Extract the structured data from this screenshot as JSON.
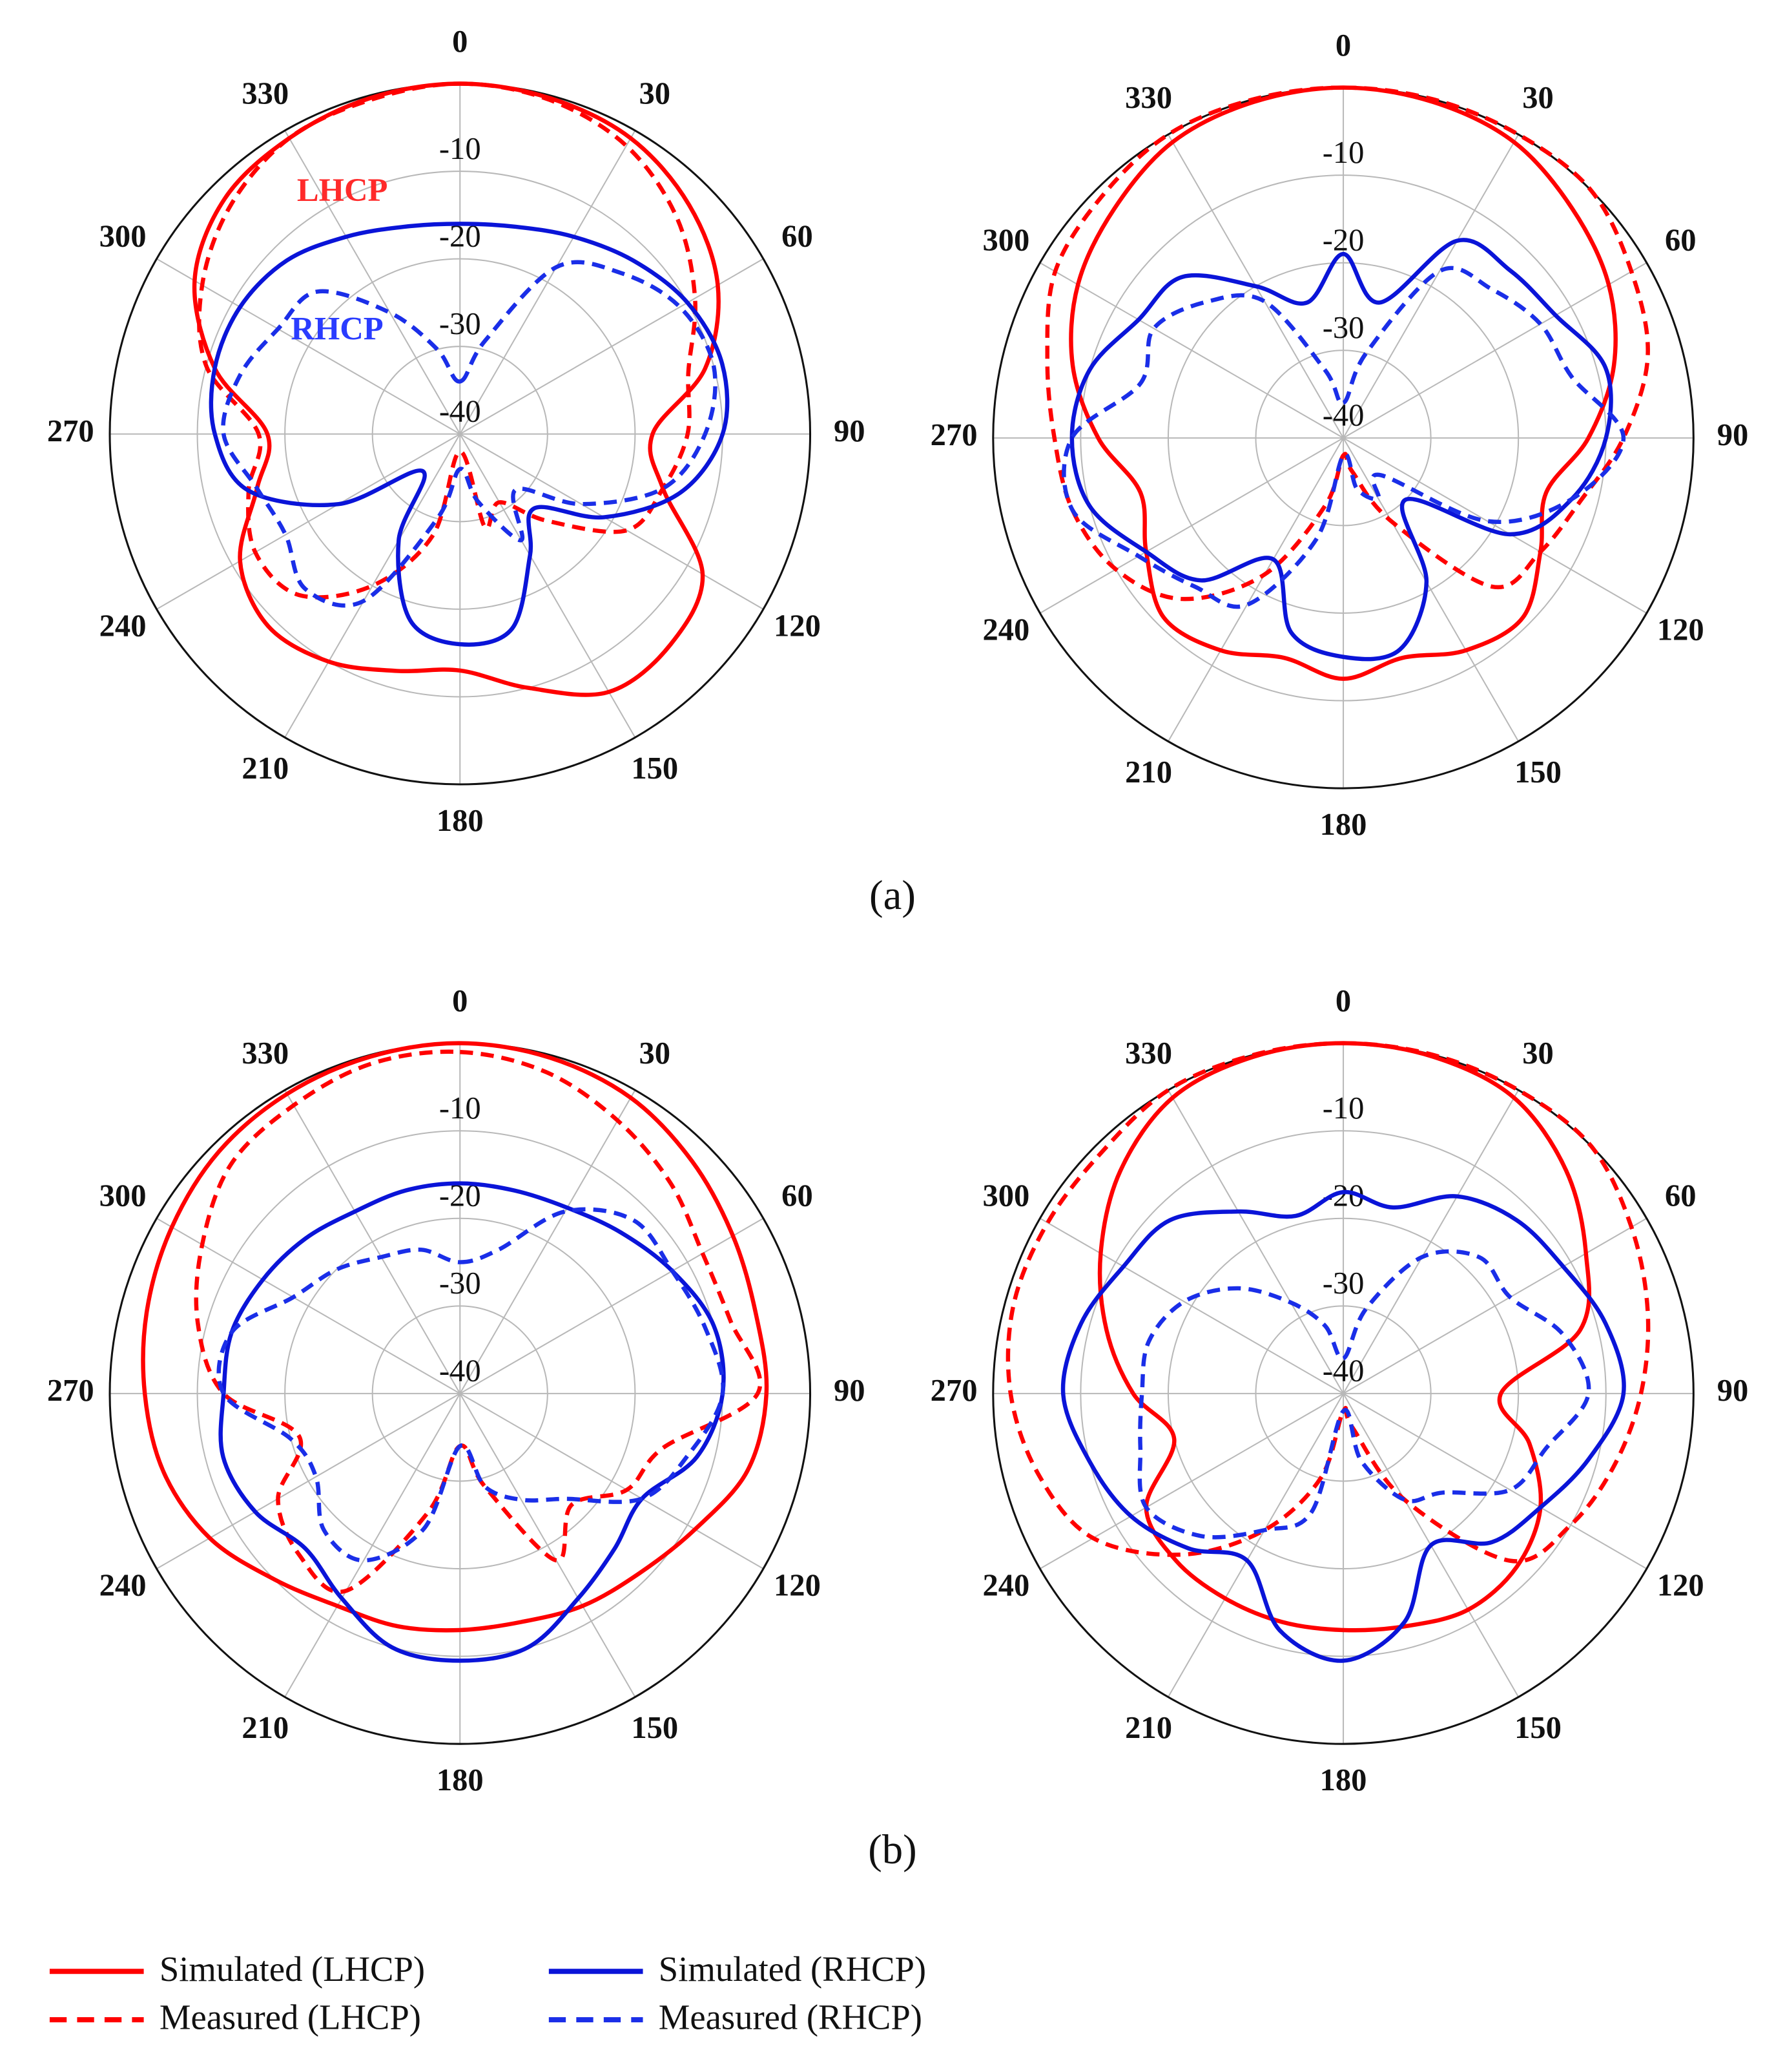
{
  "chart_data": [
    {
      "type": "polar",
      "x": [
        0,
        15,
        30,
        45,
        60,
        75,
        90,
        105,
        120,
        135,
        150,
        165,
        180,
        195,
        210,
        225,
        240,
        255,
        270,
        285,
        300,
        315,
        330,
        345
      ],
      "xticks": [
        0,
        30,
        60,
        90,
        120,
        150,
        180,
        210,
        240,
        270,
        300,
        330
      ],
      "ylim": [
        -40,
        0
      ],
      "yticks": [
        -40,
        -30,
        -20,
        -10
      ],
      "annotations": [
        {
          "text": "LHCP",
          "color": "#ff2a2a"
        },
        {
          "text": "RHCP",
          "color": "#2a3cff"
        }
      ],
      "series": [
        {
          "name": "Simulated (LHCP)",
          "color": "#ff0000",
          "dash": false,
          "values": [
            0,
            -0.3,
            -1,
            -3,
            -6,
            -11,
            -18,
            -16,
            -8,
            -6,
            -6,
            -10,
            -13,
            -12,
            -10,
            -9,
            -11,
            -16,
            -18,
            -11,
            -5,
            -2,
            -1,
            -0.3
          ]
        },
        {
          "name": "Measured (LHCP)",
          "color": "#ff0000",
          "dash": true,
          "values": [
            0,
            -0.5,
            -2,
            -5,
            -9,
            -13,
            -14,
            -16,
            -18,
            -26,
            -31,
            -29,
            -38,
            -28,
            -20,
            -14,
            -13,
            -15,
            -17,
            -10,
            -6,
            -3,
            -1,
            -0.5
          ]
        },
        {
          "name": "Simulated (RHCP)",
          "color": "#0a14d8",
          "dash": false,
          "values": [
            -16,
            -15.5,
            -14,
            -12,
            -10,
            -9,
            -10,
            -14,
            -21,
            -28,
            -24,
            -17,
            -16,
            -18,
            -26,
            -34,
            -24,
            -15,
            -12,
            -11,
            -11,
            -12,
            -14,
            -15.5
          ]
        },
        {
          "name": "Measured (RHCP)",
          "color": "#1a2ee8",
          "dash": true,
          "values": [
            -34,
            -29,
            -18,
            -14,
            -11,
            -10,
            -12,
            -16,
            -24,
            -31,
            -26,
            -32,
            -36,
            -30,
            -18,
            -15,
            -17,
            -16,
            -13,
            -14,
            -16,
            -17,
            -24,
            -30
          ]
        }
      ]
    },
    {
      "type": "polar",
      "x": [
        0,
        15,
        30,
        45,
        60,
        75,
        90,
        105,
        120,
        135,
        150,
        165,
        180,
        195,
        210,
        225,
        240,
        255,
        270,
        285,
        300,
        315,
        330,
        345
      ],
      "xticks": [
        0,
        30,
        60,
        90,
        120,
        150,
        180,
        210,
        240,
        270,
        300,
        330
      ],
      "ylim": [
        -40,
        0
      ],
      "yticks": [
        -40,
        -30,
        -20,
        -10
      ],
      "series": [
        {
          "color": "#ff0000",
          "dash": false,
          "values": [
            0,
            -0.3,
            -1,
            -3,
            -5,
            -8,
            -12,
            -16,
            -14,
            -11,
            -12,
            -14,
            -12.5,
            -14,
            -12,
            -11,
            -14,
            -16,
            -12,
            -8,
            -5,
            -3,
            -1,
            -0.3
          ]
        },
        {
          "color": "#ff0000",
          "dash": true,
          "values": [
            0,
            0,
            0,
            0,
            -2,
            -4,
            -8,
            -12,
            -14,
            -16,
            -29,
            -36,
            -38,
            -32,
            -22,
            -14,
            -10,
            -8,
            -7,
            -5,
            -2,
            -1,
            0,
            0
          ]
        },
        {
          "color": "#0a14d8",
          "dash": false,
          "values": [
            -19,
            -24,
            -14,
            -13,
            -12,
            -9,
            -10,
            -13,
            -18,
            -30,
            -21,
            -15,
            -15,
            -17,
            -24,
            -17,
            -14,
            -10,
            -9,
            -10,
            -13,
            -14,
            -20,
            -24
          ]
        },
        {
          "color": "#1a2ee8",
          "dash": true,
          "values": [
            -36,
            -30,
            -18,
            -16,
            -14,
            -13,
            -8,
            -13,
            -21,
            -34,
            -32,
            -34,
            -38,
            -28,
            -18,
            -16,
            -13,
            -8,
            -9,
            -16,
            -15,
            -18,
            -22,
            -32
          ]
        }
      ]
    },
    {
      "type": "polar",
      "x": [
        0,
        15,
        30,
        45,
        60,
        75,
        90,
        105,
        120,
        135,
        150,
        165,
        180,
        195,
        210,
        225,
        240,
        255,
        270,
        285,
        300,
        315,
        330,
        345
      ],
      "xticks": [
        0,
        30,
        60,
        90,
        120,
        150,
        180,
        210,
        240,
        270,
        300,
        330
      ],
      "ylim": [
        -40,
        0
      ],
      "yticks": [
        -40,
        -30,
        -20,
        -10
      ],
      "series": [
        {
          "color": "#ff0000",
          "dash": false,
          "values": [
            0,
            -0.3,
            -1,
            -2.5,
            -4,
            -5,
            -5,
            -6,
            -9,
            -11,
            -12,
            -13,
            -13,
            -12.5,
            -12,
            -10,
            -7,
            -5,
            -4,
            -3,
            -2,
            -1,
            -0.5,
            -0.2
          ]
        },
        {
          "color": "#ff0000",
          "dash": true,
          "values": [
            -1,
            -2,
            -4,
            -6,
            -8,
            -8,
            -6,
            -16,
            -18,
            -22,
            -18,
            -29,
            -34,
            -26,
            -14,
            -14,
            -16,
            -21,
            -13,
            -9,
            -6,
            -3,
            -2,
            -1
          ]
        },
        {
          "color": "#0a14d8",
          "dash": false,
          "values": [
            -16,
            -16,
            -15.5,
            -14,
            -12,
            -10,
            -10,
            -12,
            -16,
            -15,
            -13,
            -10,
            -9.5,
            -10,
            -13,
            -15,
            -13,
            -12,
            -13,
            -13,
            -14,
            -15,
            -16,
            -16
          ]
        },
        {
          "color": "#1a2ee8",
          "dash": true,
          "values": [
            -25,
            -23,
            -16,
            -12,
            -12,
            -11,
            -10,
            -13,
            -16,
            -23,
            -26,
            -29,
            -34,
            -24,
            -18,
            -18,
            -21,
            -20,
            -13,
            -13,
            -18,
            -20,
            -22,
            -23
          ]
        }
      ]
    },
    {
      "type": "polar",
      "x": [
        0,
        15,
        30,
        45,
        60,
        75,
        90,
        105,
        120,
        135,
        150,
        165,
        180,
        195,
        210,
        225,
        240,
        255,
        270,
        285,
        300,
        315,
        330,
        345
      ],
      "xticks": [
        0,
        30,
        60,
        90,
        120,
        150,
        180,
        210,
        240,
        270,
        300,
        330
      ],
      "ylim": [
        -40,
        0
      ],
      "yticks": [
        -40,
        -30,
        -20,
        -10
      ],
      "series": [
        {
          "color": "#ff0000",
          "dash": false,
          "values": [
            0,
            -0.2,
            -1,
            -4,
            -8,
            -12,
            -22,
            -18,
            -14,
            -12,
            -11.5,
            -12.5,
            -13,
            -13,
            -13,
            -13,
            -14,
            -20,
            -16,
            -12,
            -8,
            -4,
            -1,
            -0.2
          ]
        },
        {
          "color": "#ff0000",
          "dash": true,
          "values": [
            0,
            0,
            0,
            0,
            -2,
            -4,
            -6,
            -8,
            -10,
            -13,
            -26,
            -36,
            -38,
            -30,
            -22,
            -14,
            -7,
            -4,
            -2,
            -1,
            -1,
            -1,
            0,
            0
          ]
        },
        {
          "color": "#0a14d8",
          "dash": false,
          "values": [
            -17,
            -18,
            -14,
            -12,
            -11,
            -9,
            -8,
            -11,
            -14,
            -16,
            -20,
            -13,
            -9.5,
            -12,
            -18,
            -15,
            -12,
            -10,
            -8,
            -9,
            -11,
            -12,
            -16,
            -19
          ]
        },
        {
          "color": "#1a2ee8",
          "dash": true,
          "values": [
            -36,
            -30,
            -22,
            -18,
            -18,
            -14,
            -12,
            -16,
            -18,
            -24,
            -26,
            -32,
            -38,
            -26,
            -22,
            -17,
            -14,
            -16,
            -17,
            -17,
            -19,
            -23,
            -28,
            -32
          ]
        }
      ]
    }
  ],
  "captions": [
    "(a)",
    "(b)"
  ]
}
